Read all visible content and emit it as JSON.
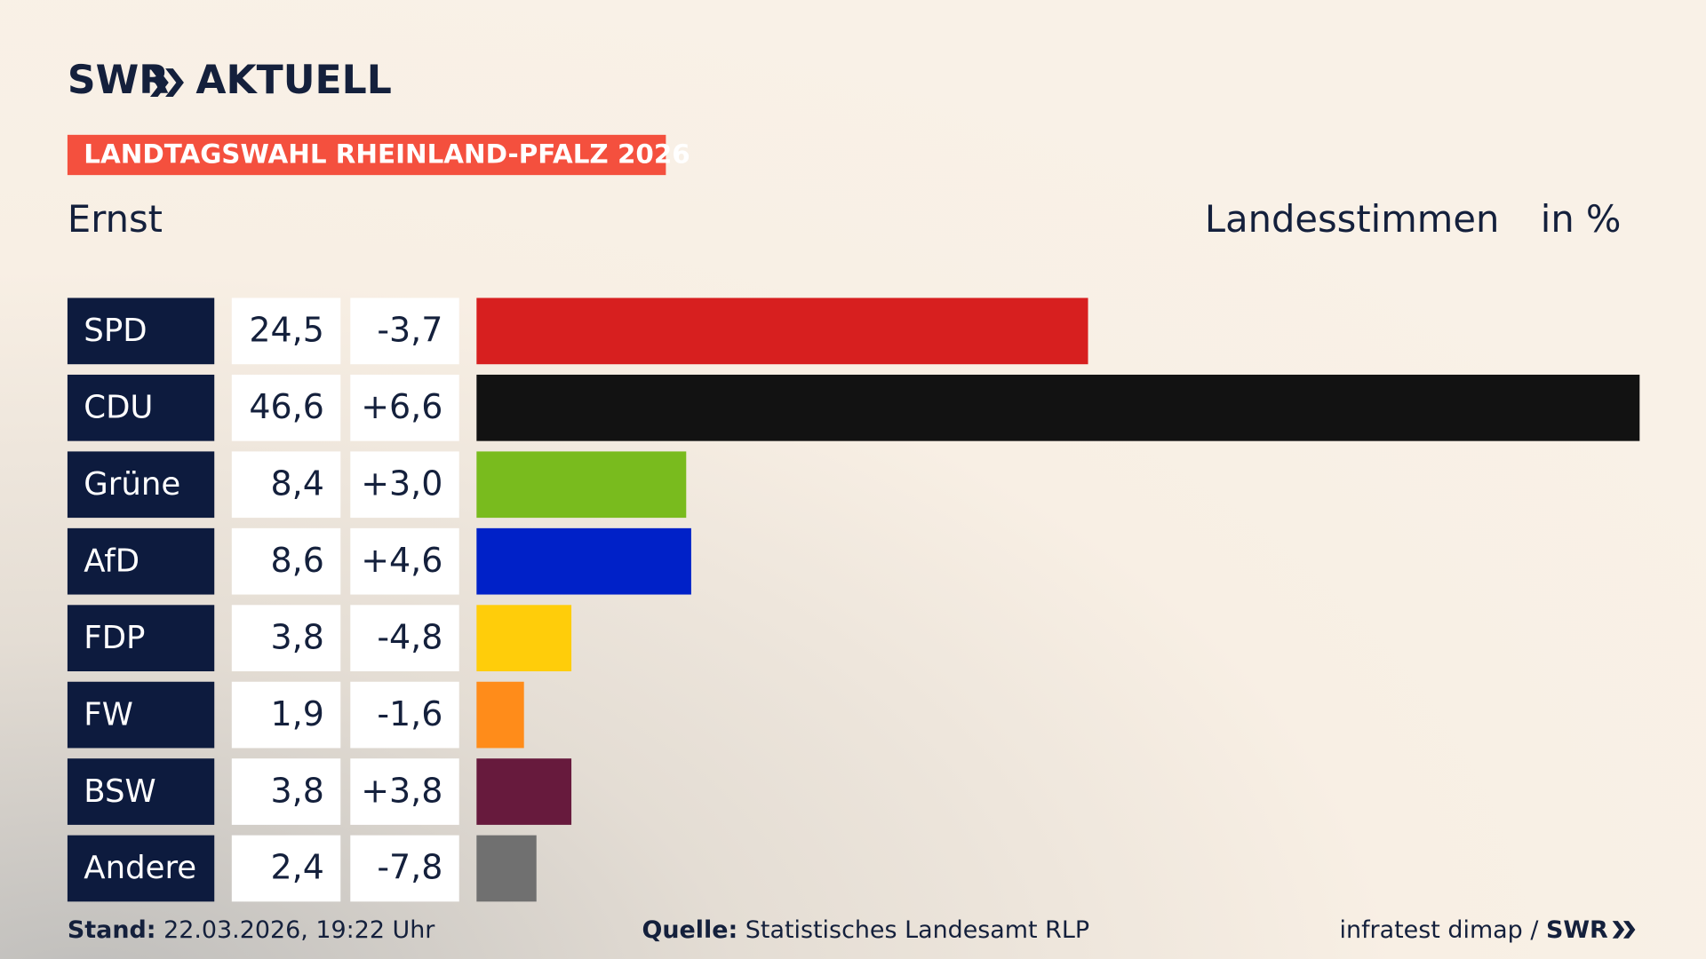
{
  "brand": {
    "name": "SWR",
    "product": "AKTUELL"
  },
  "chart_data": {
    "type": "bar",
    "orientation": "horizontal",
    "title": "LANDTAGSWAHL RHEINLAND-PFALZ 2026",
    "subtitle": "Ernst",
    "measure": "Landesstimmen",
    "unit": "in %",
    "categories": [
      "SPD",
      "CDU",
      "Grüne",
      "AfD",
      "FDP",
      "FW",
      "BSW",
      "Andere"
    ],
    "values": [
      24.5,
      46.6,
      8.4,
      8.6,
      3.8,
      1.9,
      3.8,
      2.4
    ],
    "value_labels": [
      "24,5",
      "46,6",
      "8,4",
      "8,6",
      "3,8",
      "1,9",
      "3,8",
      "2,4"
    ],
    "changes": [
      -3.7,
      6.6,
      3.0,
      4.6,
      -4.8,
      -1.6,
      3.8,
      -7.8
    ],
    "change_labels": [
      "-3,7",
      "+6,6",
      "+3,0",
      "+4,6",
      "-4,8",
      "-1,6",
      "+3,8",
      "-7,8"
    ],
    "colors": [
      "#d71f1f",
      "#121212",
      "#79bb1e",
      "#0021c8",
      "#ffcd0a",
      "#ff8c1a",
      "#671a3d",
      "#707070"
    ]
  },
  "footer": {
    "date_label": "Stand:",
    "date": "22.03.2026, 19:22 Uhr",
    "source_label": "Quelle:",
    "source": "Statistisches Landesamt RLP",
    "institute": "infratest dimap /",
    "broadcaster": "SWR"
  }
}
